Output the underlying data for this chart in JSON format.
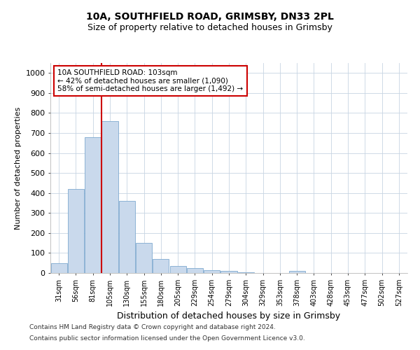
{
  "title1": "10A, SOUTHFIELD ROAD, GRIMSBY, DN33 2PL",
  "title2": "Size of property relative to detached houses in Grimsby",
  "xlabel": "Distribution of detached houses by size in Grimsby",
  "ylabel": "Number of detached properties",
  "categories": [
    "31sqm",
    "56sqm",
    "81sqm",
    "105sqm",
    "130sqm",
    "155sqm",
    "180sqm",
    "205sqm",
    "229sqm",
    "254sqm",
    "279sqm",
    "304sqm",
    "329sqm",
    "353sqm",
    "378sqm",
    "403sqm",
    "428sqm",
    "453sqm",
    "477sqm",
    "502sqm",
    "527sqm"
  ],
  "values": [
    50,
    420,
    680,
    760,
    360,
    150,
    70,
    35,
    25,
    15,
    10,
    5,
    0,
    0,
    10,
    0,
    0,
    0,
    0,
    0,
    0
  ],
  "bar_color": "#c9d9ec",
  "bar_edge_color": "#7faacf",
  "property_line_bin": 2.5,
  "annotation_text1": "10A SOUTHFIELD ROAD: 103sqm",
  "annotation_text2": "← 42% of detached houses are smaller (1,090)",
  "annotation_text3": "58% of semi-detached houses are larger (1,492) →",
  "annotation_box_color": "#ffffff",
  "annotation_box_edge": "#cc0000",
  "property_line_color": "#cc0000",
  "ylim": [
    0,
    1050
  ],
  "yticks": [
    0,
    100,
    200,
    300,
    400,
    500,
    600,
    700,
    800,
    900,
    1000
  ],
  "footer1": "Contains HM Land Registry data © Crown copyright and database right 2024.",
  "footer2": "Contains public sector information licensed under the Open Government Licence v3.0.",
  "background_color": "#ffffff",
  "grid_color": "#c8d4e3"
}
